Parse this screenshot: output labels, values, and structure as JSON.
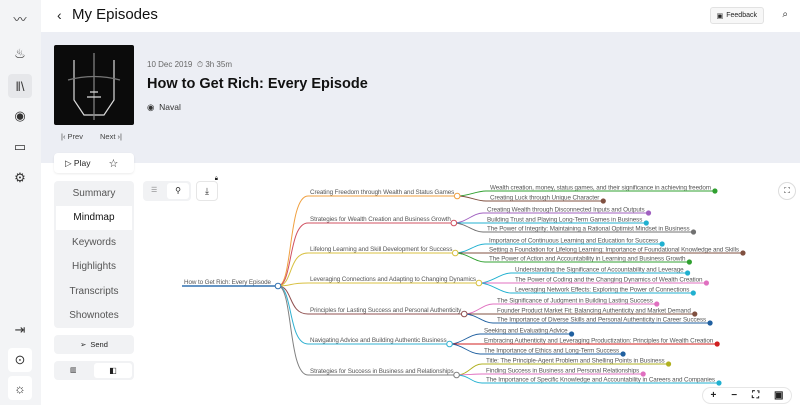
{
  "header": {
    "title": "My Episodes",
    "feedback_label": "Feedback"
  },
  "episode": {
    "date": "10 Dec 2019",
    "duration": "3h 35m",
    "title": "How to Get Rich: Every Episode",
    "author": "Naval",
    "prev_label": "Prev",
    "next_label": "Next",
    "play_label": "Play"
  },
  "menu": [
    "Summary",
    "Mindmap",
    "Keywords",
    "Highlights",
    "Transcripts",
    "Shownotes"
  ],
  "active_menu": "Mindmap",
  "send_label": "Send",
  "mindmap": {
    "root": "How to Get Rich: Every Episode",
    "root_color": "#3070b0",
    "branches": [
      {
        "label": "Creating Freedom through Wealth and Status Games",
        "color": "#f0a040",
        "children": [
          {
            "label": "Wealth creation, money, status games, and their significance in achieving freedom",
            "color": "#30a030"
          },
          {
            "label": "Creating Luck through Unique Character",
            "color": "#805040"
          }
        ]
      },
      {
        "label": "Strategies for Wealth Creation and Business Growth",
        "color": "#d05060",
        "children": [
          {
            "label": "Creating Wealth through Disconnected Inputs and Outputs",
            "color": "#a060c0"
          },
          {
            "label": "Building Trust and Playing Long-Term Games in Business",
            "color": "#20b0d0"
          },
          {
            "label": "The Power of Integrity: Maintaining a Rational Optimist Mindset in Business",
            "color": "#707070"
          }
        ]
      },
      {
        "label": "Lifelong Learning and Skill Development for Success",
        "color": "#d8c040",
        "children": [
          {
            "label": "Importance of Continuous Learning and Education for Success",
            "color": "#20b0d0"
          },
          {
            "label": "Setting a Foundation for Lifelong Learning: Importance of Foundational Knowledge and Skills",
            "color": "#805040"
          },
          {
            "label": "The Power of Action and Accountability in Learning and Business Growth",
            "color": "#30a030"
          }
        ]
      },
      {
        "label": "Leveraging Connections and Adapting to Changing Dynamics",
        "color": "#d8c040",
        "children": [
          {
            "label": "Understanding the Significance of Accountability and Leverage",
            "color": "#20b0d0"
          },
          {
            "label": "The Power of Coding and the Changing Dynamics of Wealth Creation",
            "color": "#e070c0"
          },
          {
            "label": "Leveraging Network Effects: Exploring the Power of Connections",
            "color": "#20b0d0"
          }
        ]
      },
      {
        "label": "Principles for Lasting Success and Personal Authenticity",
        "color": "#905050",
        "children": [
          {
            "label": "The Significance of Judgment in Building Lasting Success",
            "color": "#e070c0"
          },
          {
            "label": "Founder Product Market Fit: Balancing Authenticity and Market Demand",
            "color": "#805040"
          },
          {
            "label": "The Importance of Diverse Skills and Personal Authenticity in Career Success",
            "color": "#2060a0"
          }
        ]
      },
      {
        "label": "Navigating Advice and Building Authentic Business",
        "color": "#30b0d0",
        "children": [
          {
            "label": "Seeking and Evaluating Advice",
            "color": "#2060a0"
          },
          {
            "label": "Embracing Authenticity and Leveraging Productization: Principles for Wealth Creation",
            "color": "#d02020"
          },
          {
            "label": "The Importance of Ethics and Long-Term Success",
            "color": "#2060a0"
          }
        ]
      },
      {
        "label": "Strategies for Success in Business and Relationships",
        "color": "#808080",
        "children": [
          {
            "label": "Title: The Principle-Agent Problem and Shelling Points in Business",
            "color": "#b0b020"
          },
          {
            "label": "Finding Success in Business and Personal Relationships",
            "color": "#e070c0"
          },
          {
            "label": "The Importance of Specific Knowledge and Accountability in Careers and Companies",
            "color": "#20b0d0"
          }
        ]
      }
    ]
  }
}
